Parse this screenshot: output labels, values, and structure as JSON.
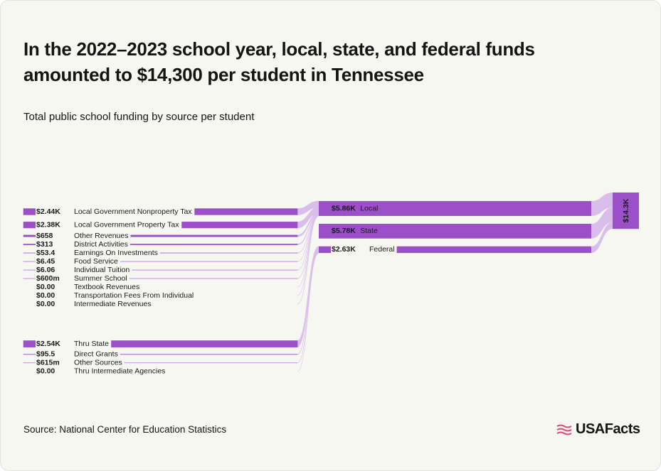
{
  "header": {
    "title_lines": [
      "In the 2022–2023 school year, local, state, and federal funds",
      "amounted to $14,300 per student in Tennessee"
    ],
    "subtitle": "Total public school funding by source per student"
  },
  "chart_data": {
    "type": "sankey",
    "color": "#9b50c9",
    "link_color": "#d9bdeb",
    "groups": [
      {
        "name": "Local",
        "value": 5860,
        "value_label": "$5.86K",
        "sources": [
          {
            "name": "Local Government Nonproperty Tax",
            "value": 2440,
            "value_label": "$2.44K"
          },
          {
            "name": "Local Government Property Tax",
            "value": 2380,
            "value_label": "$2.38K"
          },
          {
            "name": "Other Revenues",
            "value": 658,
            "value_label": "$658"
          },
          {
            "name": "District Activities",
            "value": 313,
            "value_label": "$313"
          },
          {
            "name": "Earnings On Investments",
            "value": 53.4,
            "value_label": "$53.4"
          },
          {
            "name": "Food Service",
            "value": 6.45,
            "value_label": "$6.45"
          },
          {
            "name": "Individual Tuition",
            "value": 6.06,
            "value_label": "$6.06"
          },
          {
            "name": "Summer School",
            "value": 0.6,
            "value_label": "$600m"
          },
          {
            "name": "Textbook Revenues",
            "value": 0,
            "value_label": "$0.00"
          },
          {
            "name": "Transportation Fees From Individual",
            "value": 0,
            "value_label": "$0.00"
          },
          {
            "name": "Intermediate Revenues",
            "value": 0,
            "value_label": "$0.00"
          }
        ]
      },
      {
        "name": "State",
        "value": 5780,
        "value_label": "$5.78K",
        "sources": []
      },
      {
        "name": "Federal",
        "value": 2630,
        "value_label": "$2.63K",
        "sources": [
          {
            "name": "Thru State",
            "value": 2540,
            "value_label": "$2.54K"
          },
          {
            "name": "Direct Grants",
            "value": 95.5,
            "value_label": "$95.5"
          },
          {
            "name": "Other Sources",
            "value": 0.615,
            "value_label": "$615m"
          },
          {
            "name": "Thru Intermediate Agencies",
            "value": 0,
            "value_label": "$0.00"
          }
        ]
      }
    ],
    "total": {
      "value": 14300,
      "value_label": "$14.3K"
    }
  },
  "footer": {
    "source": "Source: National Center for Education Statistics",
    "logo": "USAFacts"
  }
}
